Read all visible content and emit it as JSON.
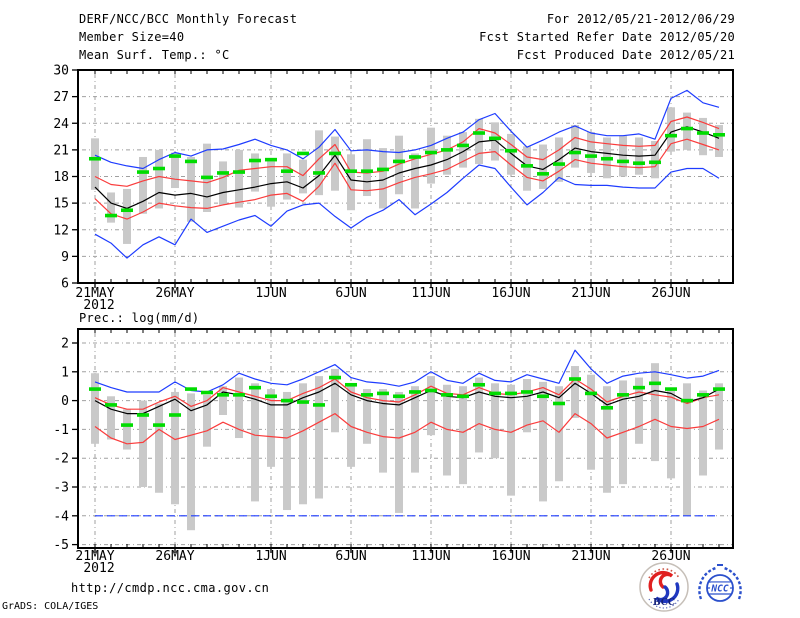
{
  "header": {
    "left_lines": [
      "DERF/NCC/BCC Monthly Forecast",
      "Member Size=40",
      "Mean Surf. Temp.: °C"
    ],
    "right_lines": [
      "For 2012/05/21-2012/06/29",
      "Fcst Started Refer Date 2012/05/20",
      "Fcst Produced Date 2012/05/21"
    ]
  },
  "footer": {
    "url": "http://cmdp.ncc.cma.gov.cn",
    "credit": "GrADS: COLA/IGES",
    "logos": {
      "bcc": "BCC",
      "ncc": "NCC"
    }
  },
  "colors": {
    "envelope_blue": "#1e3cff",
    "band_red": "#fa3c3c",
    "mean_black": "#000000",
    "obs_green": "#00dc00",
    "spread_gray": "#c9c9c9",
    "grid": "#a0a0a0",
    "frame": "#000000",
    "background": "#ffffff",
    "bcc_navy": "#15227a",
    "bcc_red": "#e02020",
    "ncc_blue": "#2b50cc"
  },
  "chart_data": [
    {
      "type": "line",
      "title": "Mean Surf. Temp.: °C",
      "ylabel": "°C",
      "ylim": [
        6,
        30
      ],
      "yticks": [
        30,
        27,
        24,
        21,
        18,
        15,
        12,
        9,
        6
      ],
      "grid": true,
      "legend": null,
      "x_dates": [
        "21MAY",
        "22MAY",
        "23MAY",
        "24MAY",
        "25MAY",
        "26MAY",
        "27MAY",
        "28MAY",
        "29MAY",
        "30MAY",
        "31MAY",
        "1JUN",
        "2JUN",
        "3JUN",
        "4JUN",
        "5JUN",
        "6JUN",
        "7JUN",
        "8JUN",
        "9JUN",
        "10JUN",
        "11JUN",
        "12JUN",
        "13JUN",
        "14JUN",
        "15JUN",
        "16JUN",
        "17JUN",
        "18JUN",
        "19JUN",
        "20JUN",
        "21JUN",
        "22JUN",
        "23JUN",
        "24JUN",
        "25JUN",
        "26JUN",
        "27JUN",
        "28JUN",
        "29JUN"
      ],
      "x_tick_labels": [
        "21MAY",
        "26MAY",
        "1JUN",
        "6JUN",
        "11JUN",
        "16JUN",
        "21JUN",
        "26JUN"
      ],
      "x_tick_indices": [
        0,
        5,
        11,
        16,
        21,
        26,
        31,
        36
      ],
      "x_year_label": "2012",
      "series": [
        {
          "name": "upper envelope (blue)",
          "color": "#1e3cff",
          "values": [
            20.4,
            19.6,
            19.2,
            18.9,
            19.9,
            20.7,
            20.3,
            21.0,
            21.1,
            21.6,
            22.2,
            21.5,
            21.0,
            20.0,
            21.3,
            23.3,
            20.9,
            21.0,
            20.8,
            20.7,
            21.0,
            21.5,
            22.3,
            23.0,
            24.4,
            25.1,
            23.1,
            21.3,
            22.1,
            23.0,
            23.7,
            22.9,
            22.6,
            22.6,
            22.8,
            22.2,
            26.8,
            27.7,
            26.3,
            25.8
          ]
        },
        {
          "name": "upper band (red)",
          "color": "#fa3c3c",
          "values": [
            18.0,
            17.1,
            16.9,
            17.5,
            18.0,
            17.7,
            17.5,
            17.3,
            17.9,
            18.7,
            18.9,
            19.1,
            19.1,
            18.1,
            20.0,
            21.6,
            18.5,
            18.4,
            18.6,
            19.4,
            20.0,
            20.5,
            21.0,
            21.9,
            23.4,
            22.9,
            21.6,
            20.2,
            19.9,
            21.0,
            22.4,
            21.9,
            21.7,
            21.5,
            21.4,
            21.5,
            24.2,
            24.7,
            24.1,
            23.4
          ]
        },
        {
          "name": "lower band (red)",
          "color": "#fa3c3c",
          "values": [
            15.5,
            13.8,
            13.2,
            14.0,
            15.0,
            14.7,
            14.5,
            14.4,
            14.8,
            15.1,
            15.4,
            15.9,
            16.1,
            15.2,
            16.9,
            19.5,
            16.5,
            16.4,
            16.6,
            17.3,
            17.9,
            18.3,
            18.8,
            19.7,
            20.6,
            20.8,
            19.3,
            17.9,
            17.5,
            18.6,
            19.9,
            19.5,
            19.3,
            19.1,
            19.0,
            19.1,
            21.7,
            22.2,
            21.6,
            21.0
          ]
        },
        {
          "name": "lower envelope (blue)",
          "color": "#1e3cff",
          "values": [
            11.5,
            10.5,
            8.8,
            10.3,
            11.2,
            10.3,
            13.2,
            11.7,
            12.4,
            13.1,
            13.6,
            12.4,
            14.1,
            14.8,
            15.0,
            13.5,
            12.2,
            13.4,
            14.2,
            15.4,
            13.7,
            14.9,
            16.2,
            17.8,
            19.3,
            18.9,
            16.8,
            14.8,
            16.2,
            17.9,
            17.1,
            17.0,
            17.0,
            16.8,
            16.7,
            16.7,
            18.5,
            18.9,
            18.9,
            17.8
          ]
        },
        {
          "name": "ensemble mean (black)",
          "color": "#000000",
          "values": [
            16.8,
            15.0,
            14.4,
            15.2,
            16.2,
            15.9,
            16.1,
            15.7,
            16.2,
            16.5,
            16.8,
            17.2,
            17.4,
            16.7,
            18.1,
            20.4,
            17.6,
            17.4,
            17.6,
            18.4,
            18.9,
            19.3,
            19.9,
            20.8,
            21.9,
            22.1,
            20.6,
            19.2,
            18.8,
            19.9,
            21.2,
            20.8,
            20.6,
            20.4,
            20.3,
            20.4,
            23.0,
            23.6,
            23.0,
            22.3
          ]
        }
      ],
      "spread_bars": {
        "name": "ensemble spread bar (gray)",
        "color": "#c9c9c9",
        "ranges": [
          [
            16.5,
            22.3
          ],
          [
            12.8,
            16.2
          ],
          [
            10.4,
            16.6
          ],
          [
            13.8,
            20.2
          ],
          [
            14.4,
            21.0
          ],
          [
            16.7,
            20.7
          ],
          [
            12.9,
            20.2
          ],
          [
            14.0,
            21.7
          ],
          [
            14.8,
            19.7
          ],
          [
            14.5,
            21.0
          ],
          [
            16.3,
            20.6
          ],
          [
            14.6,
            19.7
          ],
          [
            15.4,
            20.6
          ],
          [
            16.1,
            19.9
          ],
          [
            15.9,
            23.2
          ],
          [
            16.4,
            22.5
          ],
          [
            14.2,
            20.5
          ],
          [
            15.8,
            22.2
          ],
          [
            14.4,
            21.2
          ],
          [
            16.0,
            22.6
          ],
          [
            14.4,
            20.6
          ],
          [
            17.2,
            23.5
          ],
          [
            18.2,
            22.6
          ],
          [
            19.0,
            23.0
          ],
          [
            19.4,
            24.5
          ],
          [
            19.8,
            24.1
          ],
          [
            18.2,
            22.8
          ],
          [
            16.4,
            21.4
          ],
          [
            16.6,
            21.6
          ],
          [
            17.4,
            22.4
          ],
          [
            19.0,
            23.8
          ],
          [
            18.4,
            23.0
          ],
          [
            17.8,
            22.4
          ],
          [
            18.0,
            22.6
          ],
          [
            18.2,
            22.4
          ],
          [
            17.8,
            22.0
          ],
          [
            20.8,
            25.8
          ],
          [
            21.0,
            25.2
          ],
          [
            20.4,
            24.6
          ],
          [
            20.2,
            23.8
          ]
        ]
      },
      "observations": {
        "name": "green dash marker",
        "color": "#00dc00",
        "values": [
          20.0,
          13.6,
          14.2,
          18.5,
          18.9,
          20.3,
          19.7,
          17.9,
          18.4,
          18.5,
          19.8,
          19.9,
          18.6,
          20.6,
          18.4,
          20.6,
          18.6,
          18.6,
          18.8,
          19.7,
          20.2,
          20.7,
          21.0,
          21.5,
          22.9,
          22.3,
          20.9,
          19.2,
          18.3,
          19.4,
          20.7,
          20.3,
          20.0,
          19.7,
          19.5,
          19.6,
          22.6,
          23.4,
          22.9,
          22.7
        ]
      }
    },
    {
      "type": "line",
      "title": "Prec.: log(mm/d)",
      "ylabel": "log(mm/d)",
      "ylim": [
        -5,
        2
      ],
      "yticks": [
        2,
        1,
        0,
        -1,
        -2,
        -3,
        -4,
        -5
      ],
      "grid": true,
      "legend": null,
      "x_dates": [
        "21MAY",
        "22MAY",
        "23MAY",
        "24MAY",
        "25MAY",
        "26MAY",
        "27MAY",
        "28MAY",
        "29MAY",
        "30MAY",
        "31MAY",
        "1JUN",
        "2JUN",
        "3JUN",
        "4JUN",
        "5JUN",
        "6JUN",
        "7JUN",
        "8JUN",
        "9JUN",
        "10JUN",
        "11JUN",
        "12JUN",
        "13JUN",
        "14JUN",
        "15JUN",
        "16JUN",
        "17JUN",
        "18JUN",
        "19JUN",
        "20JUN",
        "21JUN",
        "22JUN",
        "23JUN",
        "24JUN",
        "25JUN",
        "26JUN",
        "27JUN",
        "28JUN",
        "29JUN"
      ],
      "x_tick_labels": [
        "21MAY",
        "26MAY",
        "1JUN",
        "6JUN",
        "11JUN",
        "16JUN",
        "21JUN",
        "26JUN"
      ],
      "x_tick_indices": [
        0,
        5,
        11,
        16,
        21,
        26,
        31,
        36
      ],
      "x_year_label": "2012",
      "series": [
        {
          "name": "upper envelope (blue)",
          "color": "#1e3cff",
          "values": [
            0.65,
            0.45,
            0.3,
            0.3,
            0.3,
            0.65,
            0.35,
            0.3,
            0.55,
            0.95,
            0.75,
            0.6,
            0.55,
            0.75,
            1.0,
            1.25,
            0.8,
            0.65,
            0.6,
            0.5,
            0.65,
            1.0,
            0.7,
            0.6,
            0.95,
            0.7,
            0.65,
            0.9,
            0.75,
            0.6,
            1.75,
            1.1,
            0.6,
            0.85,
            0.95,
            1.0,
            0.9,
            0.78,
            0.85,
            1.05
          ]
        },
        {
          "name": "upper band (red)",
          "color": "#fa3c3c",
          "values": [
            0.1,
            -0.15,
            -0.3,
            -0.3,
            -0.05,
            0.15,
            -0.2,
            0.0,
            0.45,
            0.3,
            0.15,
            0.0,
            0.0,
            0.25,
            0.45,
            0.75,
            0.3,
            0.1,
            0.0,
            -0.05,
            0.2,
            0.5,
            0.25,
            0.2,
            0.45,
            0.25,
            0.2,
            0.3,
            0.45,
            0.2,
            0.75,
            0.4,
            -0.05,
            0.15,
            0.3,
            0.2,
            0.12,
            -0.1,
            0.1,
            0.2
          ]
        },
        {
          "name": "lower band (red)",
          "color": "#fa3c3c",
          "values": [
            -0.9,
            -1.3,
            -1.5,
            -1.45,
            -1.0,
            -1.35,
            -1.2,
            -1.05,
            -0.75,
            -1.0,
            -1.2,
            -1.25,
            -1.3,
            -1.05,
            -0.75,
            -0.45,
            -0.9,
            -1.1,
            -1.25,
            -1.3,
            -1.1,
            -0.75,
            -1.0,
            -1.1,
            -0.8,
            -1.0,
            -1.1,
            -0.85,
            -0.7,
            -1.1,
            -0.45,
            -0.8,
            -1.3,
            -1.1,
            -0.9,
            -0.65,
            -0.9,
            -0.97,
            -0.9,
            -0.65
          ]
        },
        {
          "name": "lower envelope flat line at -4 (blue dashed)",
          "color": "#1e3cff",
          "dashed": true,
          "values": [
            -4,
            -4,
            -4,
            -4,
            -4,
            -4,
            -4,
            -4,
            -4,
            -4,
            -4,
            -4,
            -4,
            -4,
            -4,
            -4,
            -4,
            -4,
            -4,
            -4,
            -4,
            -4,
            -4,
            -4,
            -4,
            -4,
            -4,
            -4,
            -4,
            -4,
            -4,
            -4,
            -4,
            -4,
            -4,
            -4,
            -4,
            -4,
            -4,
            -4
          ]
        },
        {
          "name": "ensemble mean (black)",
          "color": "#000000",
          "values": [
            0.0,
            -0.3,
            -0.45,
            -0.45,
            -0.2,
            0.05,
            -0.35,
            -0.15,
            0.3,
            0.2,
            0.05,
            -0.15,
            -0.15,
            0.1,
            0.3,
            0.6,
            0.2,
            0.0,
            -0.1,
            -0.15,
            0.1,
            0.35,
            0.15,
            0.1,
            0.3,
            0.15,
            0.1,
            0.15,
            0.3,
            0.1,
            0.6,
            0.25,
            -0.15,
            0.05,
            0.15,
            0.35,
            0.25,
            -0.05,
            0.1,
            0.4
          ]
        }
      ],
      "spread_bars": {
        "name": "ensemble spread bar (gray)",
        "color": "#c9c9c9",
        "ranges": [
          [
            -1.5,
            0.95
          ],
          [
            -1.35,
            0.15
          ],
          [
            -1.7,
            -0.3
          ],
          [
            -3.0,
            0.0
          ],
          [
            -3.2,
            -0.1
          ],
          [
            -3.6,
            0.3
          ],
          [
            -4.5,
            0.25
          ],
          [
            -1.6,
            0.2
          ],
          [
            -0.5,
            0.5
          ],
          [
            -1.3,
            0.8
          ],
          [
            -3.5,
            0.6
          ],
          [
            -2.3,
            0.4
          ],
          [
            -3.8,
            0.3
          ],
          [
            -3.6,
            0.6
          ],
          [
            -3.4,
            0.85
          ],
          [
            -1.1,
            1.1
          ],
          [
            -2.3,
            0.6
          ],
          [
            -1.5,
            0.4
          ],
          [
            -2.5,
            0.4
          ],
          [
            -3.9,
            0.3
          ],
          [
            -2.5,
            0.5
          ],
          [
            -1.2,
            0.85
          ],
          [
            -2.6,
            0.55
          ],
          [
            -2.9,
            0.5
          ],
          [
            -1.8,
            0.8
          ],
          [
            -2.0,
            0.6
          ],
          [
            -3.3,
            0.55
          ],
          [
            -1.1,
            0.75
          ],
          [
            -3.5,
            0.65
          ],
          [
            -2.8,
            0.5
          ],
          [
            -0.6,
            1.2
          ],
          [
            -2.4,
            0.9
          ],
          [
            -3.2,
            0.5
          ],
          [
            -2.9,
            0.7
          ],
          [
            -1.5,
            0.8
          ],
          [
            -2.1,
            1.3
          ],
          [
            -2.7,
            0.35
          ],
          [
            -4.0,
            0.6
          ],
          [
            -2.6,
            0.35
          ],
          [
            -1.7,
            0.6
          ]
        ]
      },
      "observations": {
        "name": "green dash marker",
        "color": "#00dc00",
        "values": [
          0.4,
          -0.15,
          -0.85,
          -0.5,
          -0.85,
          -0.5,
          0.4,
          0.28,
          0.2,
          0.2,
          0.45,
          0.15,
          0.0,
          -0.05,
          -0.15,
          0.8,
          0.55,
          0.2,
          0.25,
          0.15,
          0.3,
          0.35,
          0.2,
          0.15,
          0.55,
          0.25,
          0.25,
          0.3,
          0.15,
          -0.1,
          0.75,
          0.25,
          -0.25,
          0.2,
          0.45,
          0.6,
          0.4,
          0.0,
          0.2,
          0.4
        ]
      }
    }
  ]
}
